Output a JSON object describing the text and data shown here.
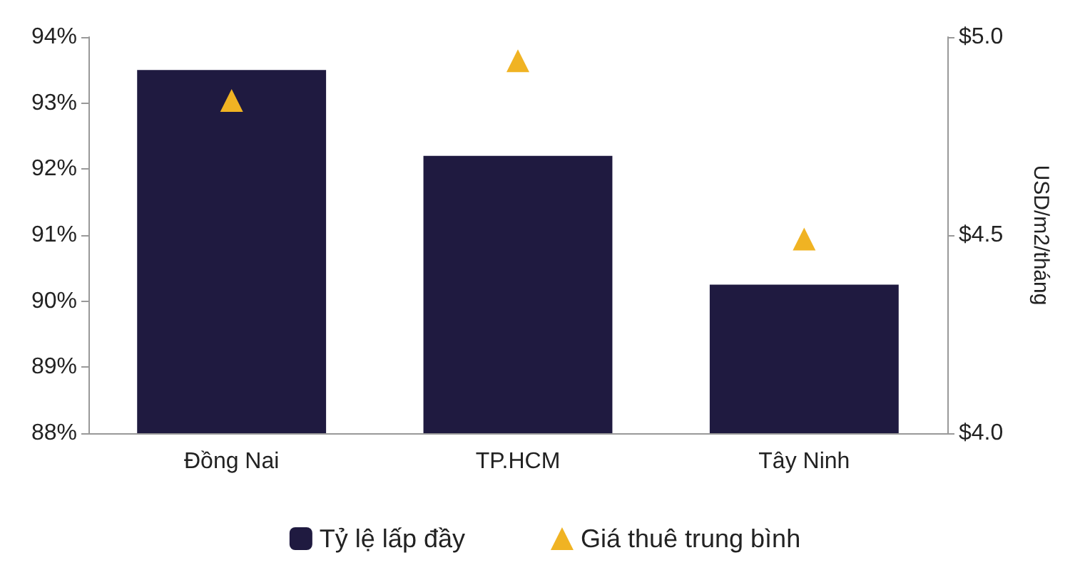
{
  "chart_data": {
    "type": "bar",
    "categories": [
      "Đồng Nai",
      "TP.HCM",
      "Tây Ninh"
    ],
    "series": [
      {
        "name": "Tỷ lệ lấp đầy",
        "color": "#1f1a40",
        "values": [
          93.5,
          92.2,
          90.25
        ]
      },
      {
        "name": "Giá thuê trung bình",
        "type": "scatter",
        "axis": "y2",
        "marker": "triangle",
        "color": "#f0b323",
        "values": [
          4.84,
          4.94,
          4.49
        ]
      }
    ],
    "ylim": [
      88,
      94
    ],
    "yticks": [
      {
        "value": 88,
        "label": "88%"
      },
      {
        "value": 89,
        "label": "89%"
      },
      {
        "value": 90,
        "label": "90%"
      },
      {
        "value": 91,
        "label": "91%"
      },
      {
        "value": 92,
        "label": "92%"
      },
      {
        "value": 93,
        "label": "93%"
      },
      {
        "value": 94,
        "label": "94%"
      }
    ],
    "y2lim": [
      4.0,
      5.0
    ],
    "y2ticks": [
      {
        "value": 4.0,
        "label": "$4.0"
      },
      {
        "value": 4.5,
        "label": "$4.5"
      },
      {
        "value": 5.0,
        "label": "$5.0"
      }
    ],
    "y2label": "USD/m2/tháng",
    "grid": false,
    "legend": "bottom"
  }
}
